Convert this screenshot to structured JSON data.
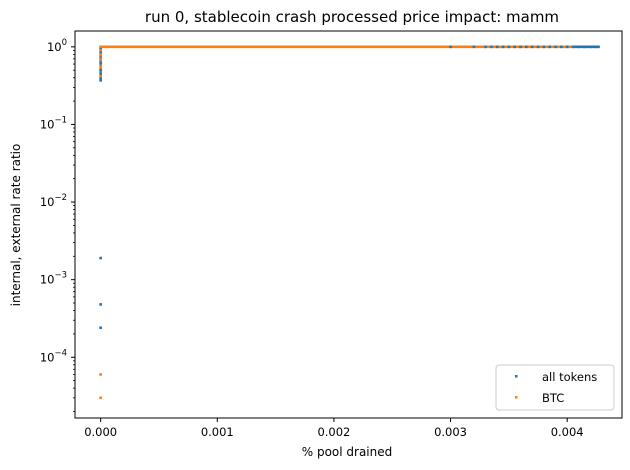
{
  "chart_data": {
    "type": "scatter",
    "title": "run 0, stablecoin crash processed price impact: mamm",
    "xlabel": "% pool drained",
    "ylabel": "internal, external rate ratio",
    "xlim": [
      -0.00022,
      0.00447
    ],
    "ylim": [
      1.65e-05,
      1.6
    ],
    "yscale": "log",
    "grid": false,
    "legend_position": "lower-right",
    "x_ticks": [
      {
        "value": 0.0,
        "label": "0.000"
      },
      {
        "value": 0.001,
        "label": "0.001"
      },
      {
        "value": 0.002,
        "label": "0.002"
      },
      {
        "value": 0.003,
        "label": "0.003"
      },
      {
        "value": 0.004,
        "label": "0.004"
      }
    ],
    "y_ticks": [
      {
        "value": 0.0001,
        "base": "10",
        "exp": "−4"
      },
      {
        "value": 0.001,
        "base": "10",
        "exp": "−3"
      },
      {
        "value": 0.01,
        "base": "10",
        "exp": "−2"
      },
      {
        "value": 0.1,
        "base": "10",
        "exp": "−1"
      },
      {
        "value": 1,
        "base": "10",
        "exp": "0"
      }
    ],
    "series": [
      {
        "name": "all tokens",
        "color": "#1f77b4",
        "x": [
          0,
          0,
          0,
          0,
          0,
          0,
          0,
          0,
          0,
          0,
          0,
          0,
          0.003,
          0.0032,
          0.0033,
          0.00335,
          0.0034,
          0.00345,
          0.0035,
          0.00355,
          0.0036,
          0.00365,
          0.0037,
          0.00375,
          0.0038,
          0.00385,
          0.0039,
          0.00395,
          0.004,
          0.00405,
          0.0041,
          0.00415,
          0.0042,
          0.00425
        ],
        "y": [
          0.0019,
          0.00048,
          0.00024,
          0.37,
          0.4,
          0.45,
          0.5,
          0.62,
          0.72,
          0.85,
          0.93,
          1.0,
          1.0,
          1.0,
          1.0,
          1.0,
          1.0,
          1.0,
          1.0,
          1.0,
          1.0,
          1.0,
          1.0,
          1.0,
          1.0,
          1.0,
          1.0,
          1.0,
          1.0,
          1.0,
          1.0,
          1.0,
          1.0,
          1.0
        ]
      },
      {
        "name": "BTC",
        "color": "#ff7f0e",
        "x": [
          0,
          0,
          0,
          0,
          0,
          0,
          0,
          0
        ],
        "y": [
          6e-05,
          3e-05,
          0.42,
          0.55,
          0.7,
          0.8,
          0.9,
          1.0
        ]
      }
    ],
    "btc_line": {
      "x_start": 0.0,
      "x_end": 0.00405,
      "y": 1.0
    },
    "blue_line": {
      "x_start": 0.00405,
      "x_end": 0.00428,
      "y": 1.0
    }
  }
}
